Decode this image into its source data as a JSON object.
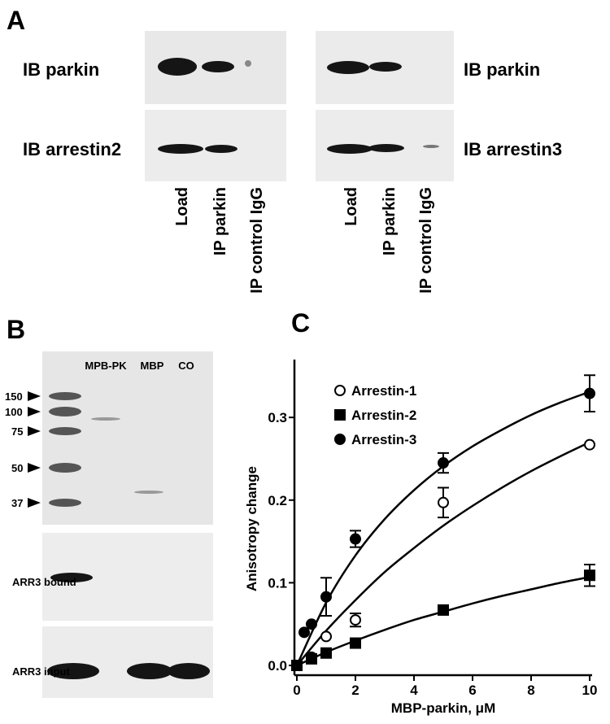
{
  "panel_a": {
    "label": "A",
    "left_blot": {
      "top_label": "IB parkin",
      "bottom_label": "IB arrestin2"
    },
    "right_blot": {
      "top_label": "IB parkin",
      "bottom_label": "IB arrestin3"
    },
    "lanes": [
      "Load",
      "IP parkin",
      "IP control IgG"
    ]
  },
  "panel_b": {
    "label": "B",
    "lanes": [
      "MPB-PK",
      "MBP",
      "CO"
    ],
    "markers": [
      150,
      100,
      75,
      50,
      37
    ],
    "blots": [
      "ARR3 bound",
      "ARR3 input"
    ]
  },
  "panel_c_label": "C",
  "chart_data": {
    "type": "scatter",
    "xlabel": "MBP-parkin, μM",
    "ylabel": "Anisotropy change",
    "xlim": [
      0,
      10
    ],
    "ylim": [
      0,
      0.37
    ],
    "xticks": [
      0,
      2,
      4,
      6,
      8,
      10
    ],
    "yticks": [
      {
        "value": 0,
        "label": "0.0"
      },
      0.1,
      0.2,
      0.3
    ],
    "legend": "upper left",
    "fit_x": [
      0,
      1,
      2,
      3,
      4,
      5,
      6,
      7,
      8,
      9,
      10
    ],
    "series": [
      {
        "name": "Arrestin-1",
        "marker": "open-circle",
        "color": "#000000",
        "x": [
          0,
          0.5,
          1,
          2,
          5,
          10
        ],
        "values": [
          0,
          0.01,
          0.035,
          0.055,
          0.197,
          0.267
        ],
        "errors": [
          null,
          null,
          null,
          0.008,
          0.018,
          null
        ],
        "fit_values": [
          0,
          0.042,
          0.079,
          0.113,
          0.142,
          0.169,
          0.193,
          0.215,
          0.235,
          0.253,
          0.27
        ]
      },
      {
        "name": "Arrestin-2",
        "marker": "square",
        "color": "#000000",
        "x": [
          0,
          0.5,
          1,
          2,
          5,
          10
        ],
        "values": [
          0,
          0.008,
          0.015,
          0.027,
          0.067,
          0.109
        ],
        "errors": [
          null,
          null,
          null,
          null,
          null,
          0.013
        ],
        "fit_values": [
          0,
          0.016,
          0.03,
          0.043,
          0.055,
          0.065,
          0.075,
          0.084,
          0.092,
          0.1,
          0.107
        ]
      },
      {
        "name": "Arrestin-3",
        "marker": "circle",
        "color": "#000000",
        "x": [
          0.25,
          0.5,
          1,
          2,
          5,
          10
        ],
        "values": [
          0.04,
          0.05,
          0.083,
          0.153,
          0.245,
          0.329
        ],
        "errors": [
          null,
          null,
          0.023,
          0.01,
          0.012,
          0.022
        ],
        "fit_values": [
          0,
          0.076,
          0.133,
          0.177,
          0.212,
          0.241,
          0.265,
          0.285,
          0.303,
          0.318,
          0.331
        ]
      }
    ]
  }
}
